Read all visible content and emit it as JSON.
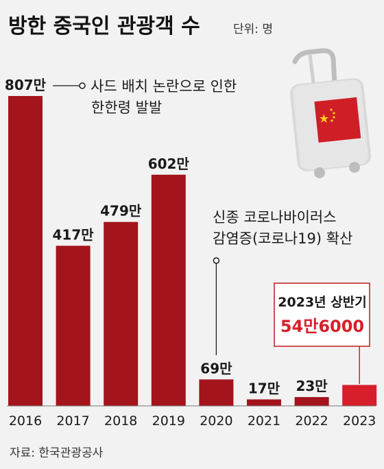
{
  "title": "방한 중국인 관광객 수",
  "unit": "단위: 명",
  "source": "자료: 한국관광공사",
  "colors": {
    "bar_dark": "#a3141c",
    "bar_highlight": "#d61f2a",
    "highlight_text": "#d61f2a",
    "box_border": "#c7252d",
    "background": "#f2f2f2"
  },
  "annotations": [
    {
      "text_lines": [
        "사드 배치 논란으로 인한",
        "한한령 발발"
      ],
      "year": "2016"
    },
    {
      "text_lines": [
        "신종 코로나바이러스",
        "감염증(코로나19) 확산"
      ],
      "year": "2020"
    }
  ],
  "highlight": {
    "year": "2023",
    "label": "2023년 상반기",
    "value_label": "54만6000"
  },
  "chart_data": {
    "type": "bar",
    "title": "방한 중국인 관광객 수",
    "unit": "단위: 명",
    "categories": [
      "2016",
      "2017",
      "2018",
      "2019",
      "2020",
      "2021",
      "2022",
      "2023"
    ],
    "values": [
      8070000,
      4170000,
      4790000,
      6020000,
      690000,
      170000,
      230000,
      546000
    ],
    "value_labels": [
      "807만",
      "417만",
      "479만",
      "602만",
      "69만",
      "17만",
      "23만",
      "54만6000"
    ],
    "ylim": [
      0,
      8070000
    ],
    "grid": false,
    "legend": "none"
  }
}
